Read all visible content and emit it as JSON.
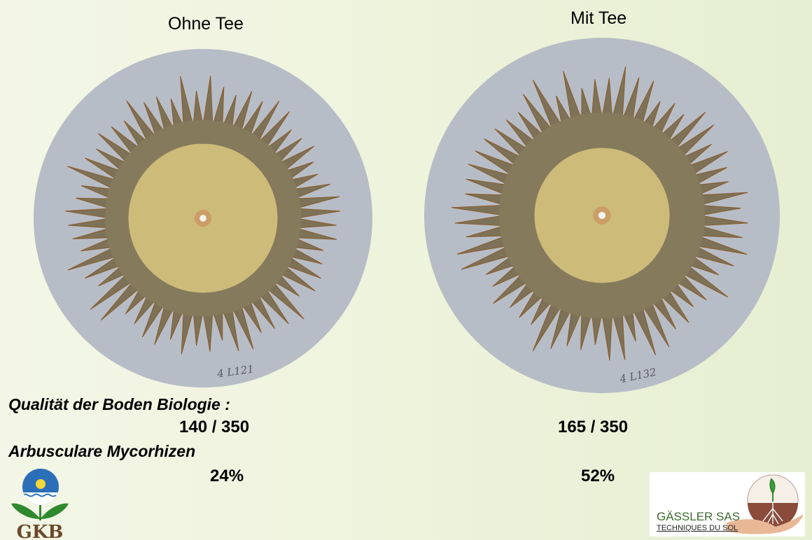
{
  "left": {
    "title": "Ohne Tee",
    "sample_label": "4 L121",
    "score": "140 / 350",
    "mycorrhiza": "24%"
  },
  "right": {
    "title": "Mit Tee",
    "sample_label": "4 L132",
    "score": "165 / 350",
    "mycorrhiza": "52%"
  },
  "labels": {
    "quality": "Qualität der Boden Biologie :",
    "mycorrhiza": "Arbusculare Mycorhizen"
  },
  "logos": {
    "gkb": {
      "text": "GKB",
      "colors": {
        "sun": "#f2d83a",
        "sky": "#2b6fb8",
        "leaf": "#2f8a2e",
        "text": "#6b4a2a"
      }
    },
    "gassler": {
      "name": "GÄSSLER SAS",
      "subtitle": "TECHNIQUES DU SOL"
    }
  },
  "colors": {
    "background": "#eef3dc",
    "paper": "#b7bdc6",
    "outer_ring": "#7d7257",
    "inner_zone": "#cdbb7a"
  }
}
